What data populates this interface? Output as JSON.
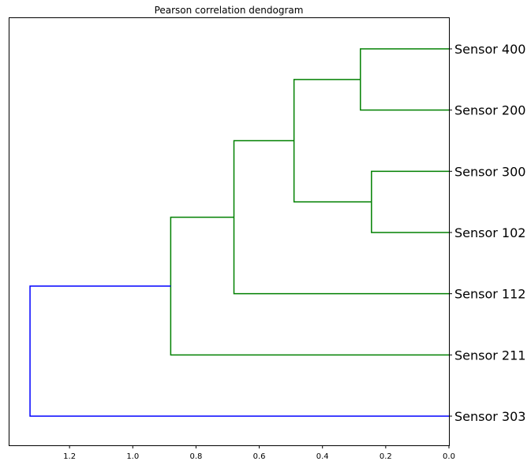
{
  "chart_data": {
    "type": "dendrogram",
    "title": "Pearson correlation dendogram",
    "orientation": "left",
    "xlim": [
      1.39,
      0.0
    ],
    "x_ticks": [
      1.2,
      1.0,
      0.8,
      0.6,
      0.4,
      0.2,
      0.0
    ],
    "x_tick_labels": [
      "1.2",
      "1.0",
      "0.8",
      "0.6",
      "0.4",
      "0.2",
      "0.0"
    ],
    "leaves": [
      "Sensor 400",
      "Sensor 200",
      "Sensor 300",
      "Sensor 102",
      "Sensor 112",
      "Sensor 211",
      "Sensor 303"
    ],
    "merges": [
      {
        "left": "leaf:0",
        "right": "leaf:1",
        "distance": 0.28,
        "color": "#008000"
      },
      {
        "left": "leaf:2",
        "right": "leaf:3",
        "distance": 0.245,
        "color": "#008000"
      },
      {
        "left": "node:0",
        "right": "node:1",
        "distance": 0.49,
        "color": "#008000"
      },
      {
        "left": "node:2",
        "right": "leaf:4",
        "distance": 0.68,
        "color": "#008000"
      },
      {
        "left": "node:3",
        "right": "leaf:5",
        "distance": 0.88,
        "color": "#008000"
      },
      {
        "left": "node:4",
        "right": "leaf:6",
        "distance": 1.325,
        "color": "#0000ff"
      }
    ],
    "grid": false,
    "legend": "none"
  }
}
